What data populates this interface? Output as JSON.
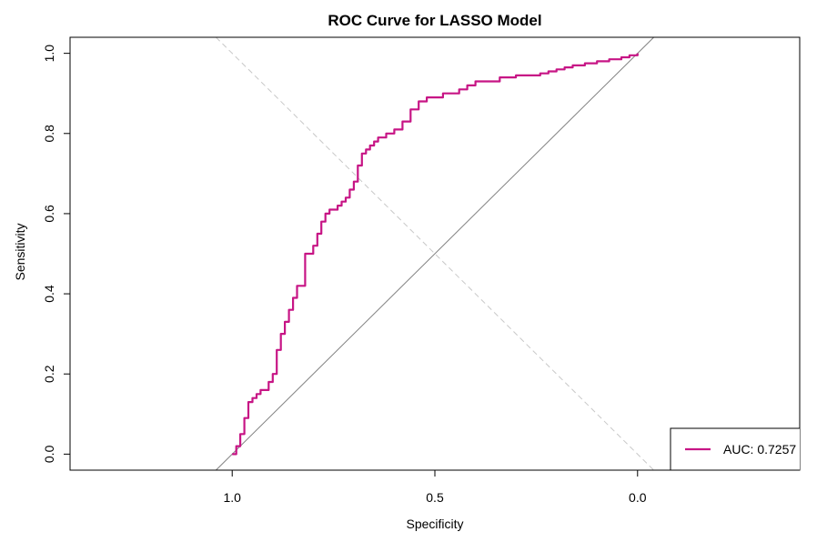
{
  "chart_data": {
    "type": "line",
    "title": "ROC Curve for LASSO Model",
    "xlabel": "Specificity",
    "ylabel": "Sensitivity",
    "x_axis_reversed": true,
    "xlim": [
      1.4,
      -0.4
    ],
    "ylim": [
      -0.04,
      1.04
    ],
    "x_ticks": [
      1.0,
      0.5,
      0.0
    ],
    "x_tick_labels": [
      "1.0",
      "0.5",
      "0.0"
    ],
    "y_ticks": [
      0.0,
      0.2,
      0.4,
      0.6,
      0.8,
      1.0
    ],
    "y_tick_labels": [
      "0.0",
      "0.2",
      "0.4",
      "0.6",
      "0.8",
      "1.0"
    ],
    "grid": false,
    "legend_position": "bottom-right",
    "series": [
      {
        "name": "AUC: 0.7257",
        "color": "#C71585",
        "x": [
          1.0,
          0.99,
          0.98,
          0.97,
          0.96,
          0.95,
          0.94,
          0.93,
          0.91,
          0.9,
          0.89,
          0.88,
          0.87,
          0.86,
          0.85,
          0.84,
          0.82,
          0.8,
          0.79,
          0.78,
          0.77,
          0.76,
          0.74,
          0.73,
          0.72,
          0.71,
          0.7,
          0.69,
          0.68,
          0.67,
          0.66,
          0.65,
          0.64,
          0.63,
          0.62,
          0.61,
          0.6,
          0.58,
          0.56,
          0.54,
          0.52,
          0.5,
          0.48,
          0.46,
          0.44,
          0.42,
          0.4,
          0.38,
          0.36,
          0.34,
          0.32,
          0.3,
          0.27,
          0.24,
          0.22,
          0.2,
          0.18,
          0.16,
          0.13,
          0.1,
          0.07,
          0.04,
          0.02,
          0.0
        ],
        "y": [
          0.0,
          0.02,
          0.05,
          0.09,
          0.13,
          0.14,
          0.15,
          0.16,
          0.18,
          0.2,
          0.26,
          0.3,
          0.33,
          0.36,
          0.39,
          0.42,
          0.5,
          0.52,
          0.55,
          0.58,
          0.6,
          0.61,
          0.62,
          0.63,
          0.64,
          0.66,
          0.68,
          0.72,
          0.75,
          0.76,
          0.77,
          0.78,
          0.79,
          0.79,
          0.8,
          0.8,
          0.81,
          0.83,
          0.86,
          0.88,
          0.89,
          0.89,
          0.9,
          0.9,
          0.91,
          0.92,
          0.93,
          0.93,
          0.93,
          0.94,
          0.94,
          0.945,
          0.945,
          0.95,
          0.955,
          0.96,
          0.965,
          0.97,
          0.975,
          0.98,
          0.985,
          0.99,
          0.995,
          1.0
        ]
      }
    ],
    "reference_lines": [
      {
        "name": "chance line",
        "color": "#808080",
        "points": [
          [
            1.04,
            -0.04
          ],
          [
            -0.04,
            1.04
          ]
        ]
      },
      {
        "name": "dashed diagonal",
        "color": "#c8c8c8",
        "points": [
          [
            1.04,
            1.04
          ],
          [
            -0.04,
            -0.04
          ]
        ]
      }
    ]
  }
}
